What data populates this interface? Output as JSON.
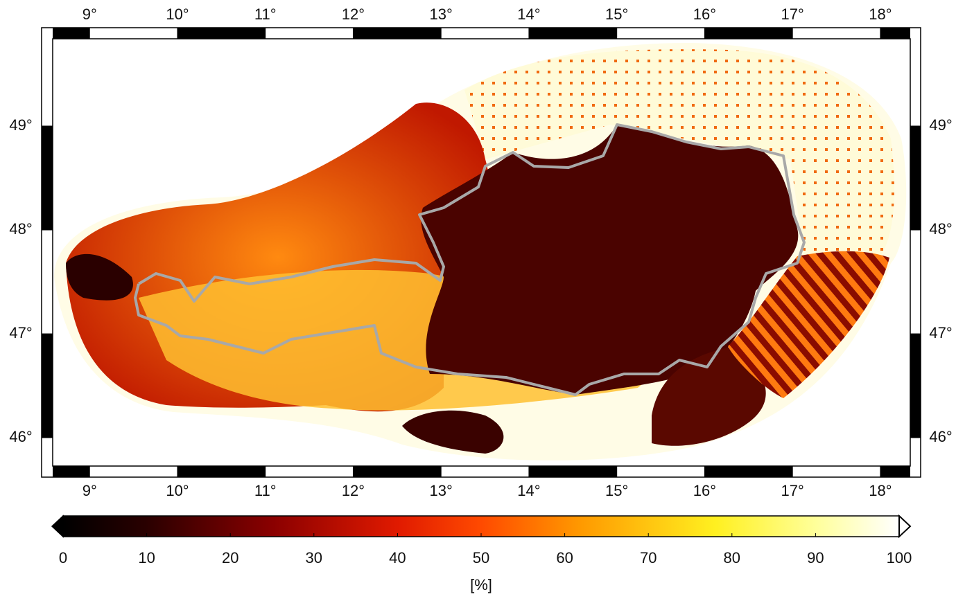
{
  "map": {
    "xlim": [
      8.58,
      18.34
    ],
    "ylim": [
      45.727,
      49.84
    ],
    "xticks": [
      {
        "value": 9,
        "label": "9°"
      },
      {
        "value": 10,
        "label": "10°"
      },
      {
        "value": 11,
        "label": "11°"
      },
      {
        "value": 12,
        "label": "12°"
      },
      {
        "value": 13,
        "label": "13°"
      },
      {
        "value": 14,
        "label": "14°"
      },
      {
        "value": 15,
        "label": "15°"
      },
      {
        "value": 16,
        "label": "16°"
      },
      {
        "value": 17,
        "label": "17°"
      },
      {
        "value": 18,
        "label": "18°"
      }
    ],
    "yticks": [
      {
        "value": 46,
        "label": "46°"
      },
      {
        "value": 47,
        "label": "47°"
      },
      {
        "value": 48,
        "label": "48°"
      },
      {
        "value": 49,
        "label": "49°"
      }
    ]
  },
  "colorbar": {
    "range": [
      0,
      100
    ],
    "ticks": [
      0,
      10,
      20,
      30,
      40,
      50,
      60,
      70,
      80,
      90,
      100
    ],
    "label": "[%]"
  }
}
